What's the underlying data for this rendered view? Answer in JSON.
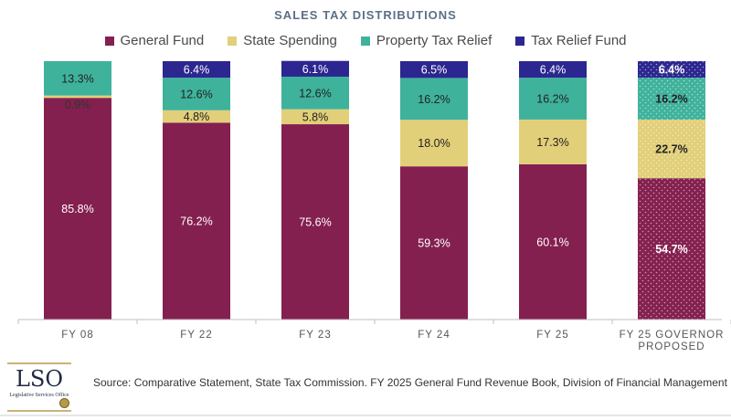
{
  "chart_data": {
    "type": "bar",
    "stacked": true,
    "title": "SALES TAX DISTRIBUTIONS",
    "categories": [
      "FY 08",
      "FY 22",
      "FY 23",
      "FY 24",
      "FY 25",
      "FY 25  GOVERNOR\nPROPOSED"
    ],
    "series": [
      {
        "name": "General Fund",
        "color": "#84204f",
        "values": [
          85.8,
          76.2,
          75.6,
          59.3,
          60.1,
          54.7
        ]
      },
      {
        "name": "State Spending",
        "color": "#e2cf79",
        "values": [
          0.9,
          4.8,
          5.8,
          18.0,
          17.3,
          22.7
        ]
      },
      {
        "name": "Property Tax Relief",
        "color": "#3fb29c",
        "values": [
          13.3,
          12.6,
          12.6,
          16.2,
          16.2,
          16.2
        ]
      },
      {
        "name": "Tax Relief Fund",
        "color": "#2c2690",
        "values": [
          0,
          6.4,
          6.1,
          6.5,
          6.4,
          6.4
        ]
      }
    ],
    "data_labels": [
      [
        "85.8%",
        "76.2%",
        "75.6%",
        "59.3%",
        "60.1%",
        "54.7%"
      ],
      [
        "0.9%",
        "4.8%",
        "5.8%",
        "18.0%",
        "17.3%",
        "22.7%"
      ],
      [
        "13.3%",
        "12.6%",
        "12.6%",
        "16.2%",
        "16.2%",
        "16.2%"
      ],
      [
        "",
        "6.4%",
        "6.1%",
        "6.5%",
        "6.4%",
        "6.4%"
      ]
    ],
    "emphasized_category": "FY 25  GOVERNOR\nPROPOSED",
    "ylim": [
      0,
      100
    ],
    "legend_position": "top",
    "grid": false
  },
  "logo": {
    "text": "LSO",
    "subtitle": "Legislative Services Office"
  },
  "source": "Source: Comparative Statement, State Tax Commission. FY 2025 General Fund Revenue Book, Division of Financial Management"
}
